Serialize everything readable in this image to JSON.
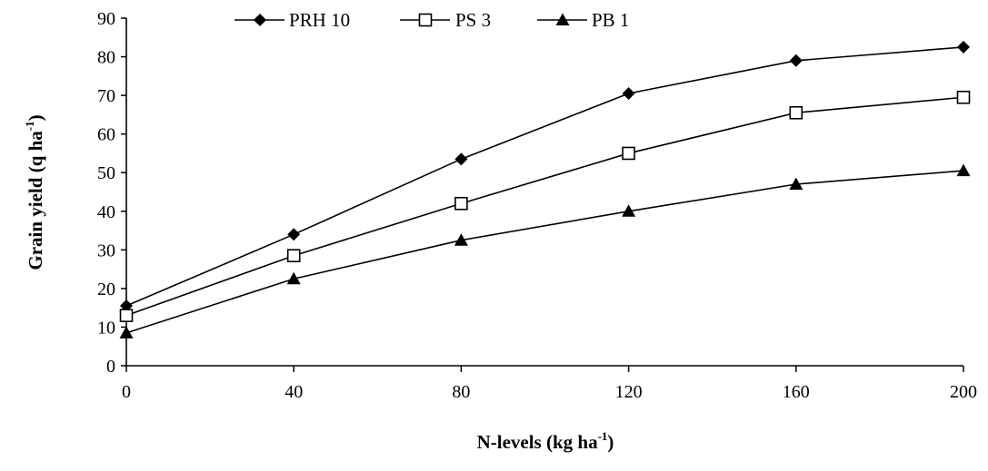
{
  "chart_data": {
    "type": "line",
    "title": "",
    "xlabel": "N-levels (kg ha",
    "xlabel_sup": "-1",
    "xlabel_end": ")",
    "ylabel": "Grain yield (q ha",
    "ylabel_sup": "-1",
    "ylabel_end": ")",
    "x": [
      0,
      40,
      80,
      120,
      160,
      200
    ],
    "x_ticks": [
      "0",
      "40",
      "80",
      "120",
      "160",
      "200"
    ],
    "y_ticks": [
      "0",
      "10",
      "20",
      "30",
      "40",
      "50",
      "60",
      "70",
      "80",
      "90"
    ],
    "xlim": [
      0,
      200
    ],
    "ylim": [
      0,
      90
    ],
    "grid": false,
    "legend_position": "top",
    "series": [
      {
        "name": "PRH 10",
        "marker": "diamond",
        "values": [
          15.5,
          34,
          53.5,
          70.5,
          79,
          82.5
        ]
      },
      {
        "name": "PS 3",
        "marker": "open-square",
        "values": [
          13,
          28.5,
          42,
          55,
          65.5,
          69.5
        ]
      },
      {
        "name": "PB 1",
        "marker": "triangle",
        "values": [
          8.5,
          22.5,
          32.5,
          40,
          47,
          50.5
        ]
      }
    ]
  }
}
